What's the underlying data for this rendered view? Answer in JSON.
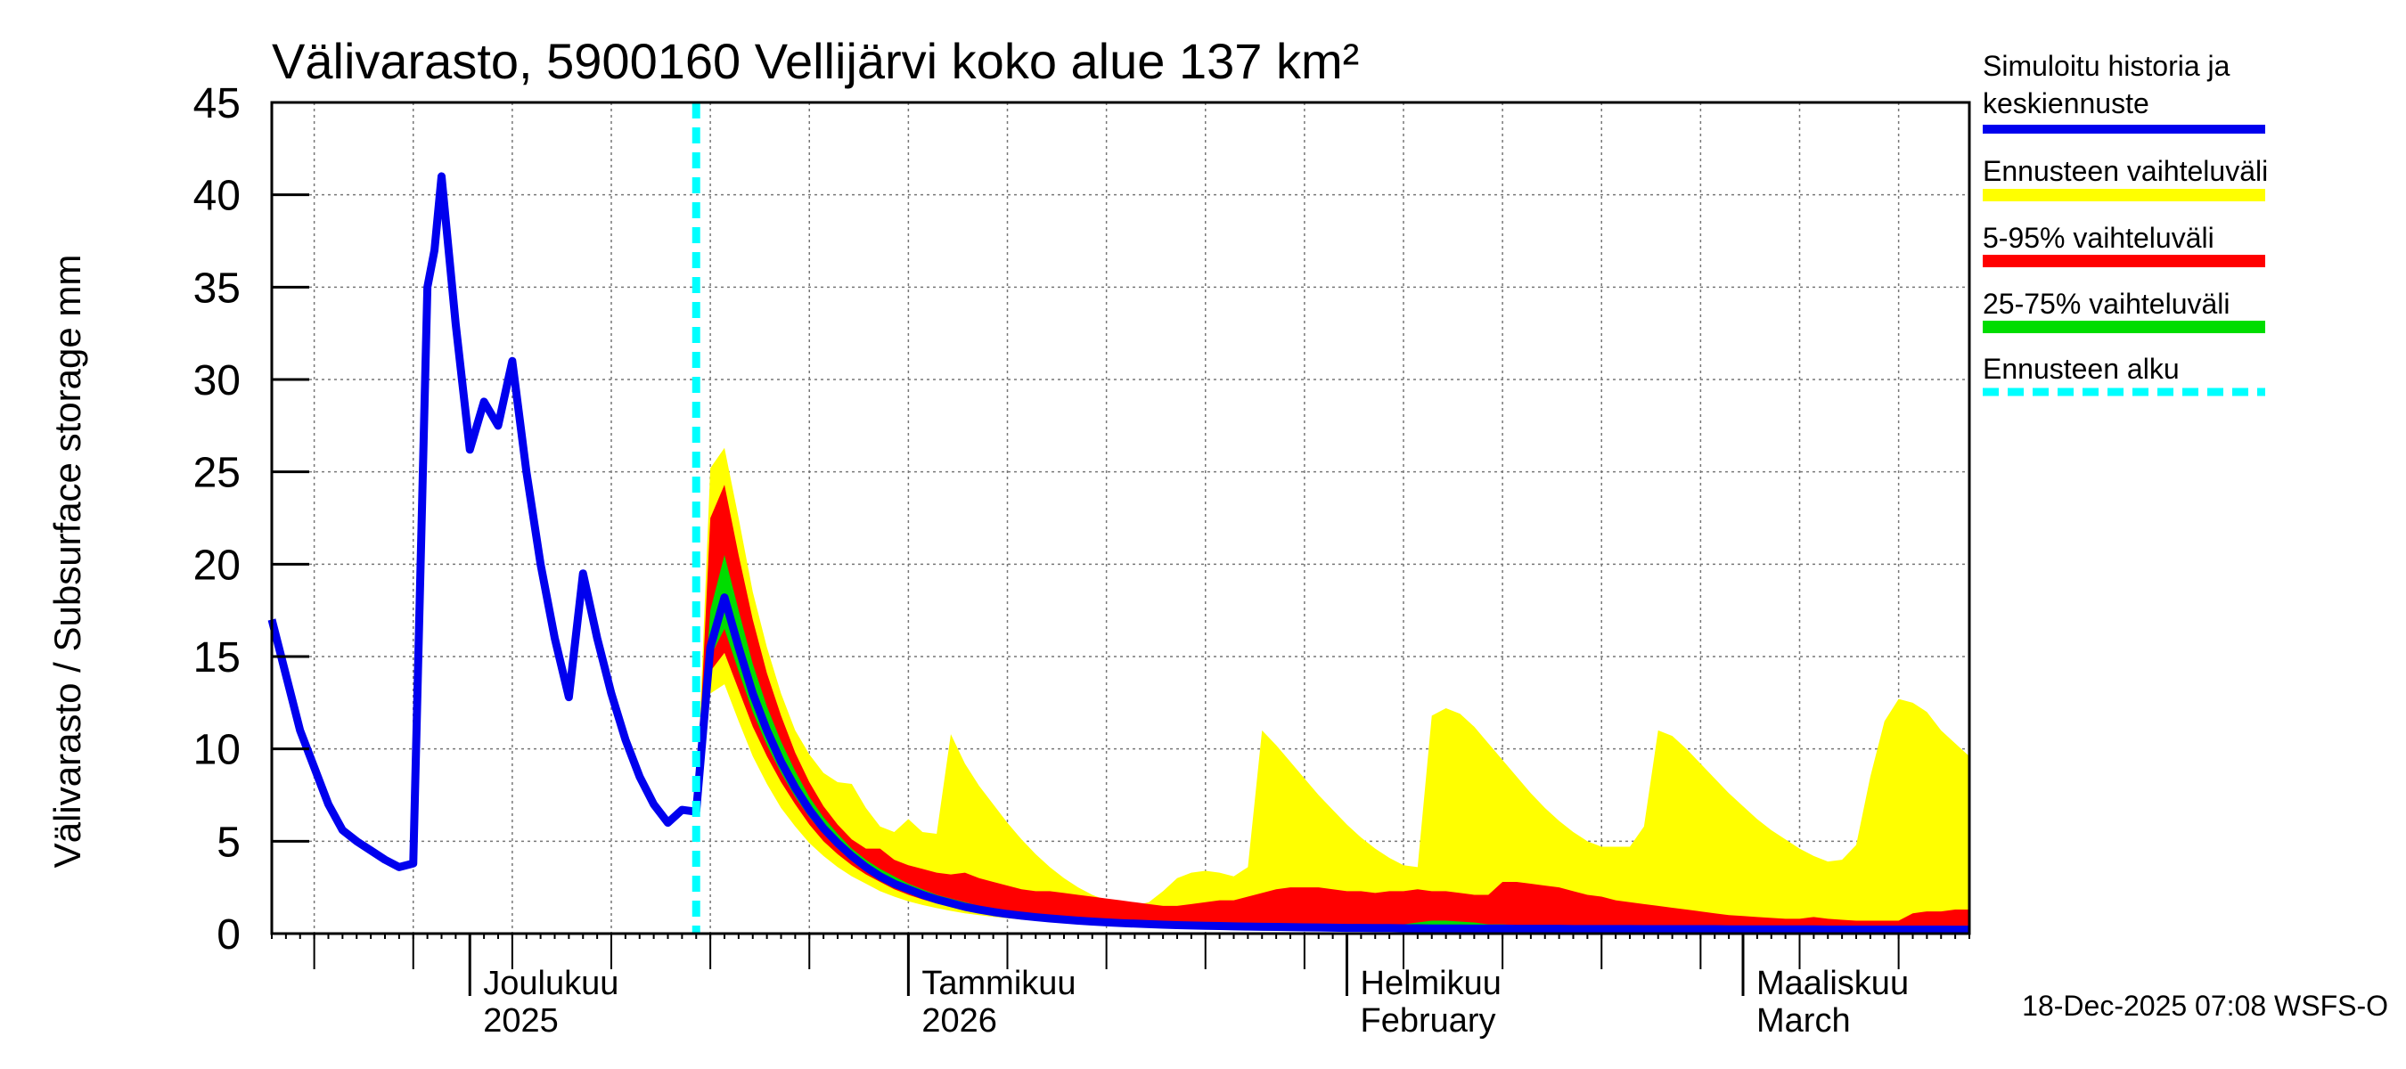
{
  "chart_data": {
    "type": "area",
    "title": "Välivarasto, 5900160 Vellijärvi koko alue 137 km²",
    "ylabel": "Välivarasto / Subsurface storage  mm",
    "ylim": [
      0,
      45
    ],
    "yticks": [
      "0",
      "5",
      "10",
      "15",
      "20",
      "25",
      "30",
      "35",
      "40",
      "45"
    ],
    "xlim_days": [
      0,
      120
    ],
    "forecast_start_day": 30,
    "month_labels": [
      {
        "day": 14,
        "line1": "Joulukuu",
        "line2": "2025"
      },
      {
        "day": 45,
        "line1": "Tammikuu",
        "line2": "2026"
      },
      {
        "day": 76,
        "line1": "Helmikuu",
        "line2": "February"
      },
      {
        "day": 104,
        "line1": "Maaliskuu",
        "line2": "March"
      }
    ],
    "legend": {
      "history_line1": "Simuloitu historia ja",
      "history_line2": "keskiennuste",
      "range": "Ennusteen vaihteluväli",
      "p5_95": "5-95% vaihteluväli",
      "p25_75": "25-75% vaihteluväli",
      "start": "Ennusteen alku"
    },
    "footer": "18-Dec-2025 07:08 WSFS-O",
    "colors": {
      "history": "#0000ee",
      "range": "#ffff00",
      "p5_95": "#ff0000",
      "p25_75": "#00dd00",
      "start": "#00ffff"
    },
    "history": {
      "x": [
        0,
        1,
        2,
        3,
        4,
        5,
        6,
        7,
        8,
        9,
        10,
        11,
        11.5,
        12,
        13,
        14,
        15,
        16,
        17,
        18,
        19,
        20,
        21,
        22,
        23,
        24,
        25,
        26,
        27,
        28,
        29,
        30
      ],
      "y": [
        17,
        14,
        11,
        9,
        7,
        5.6,
        5,
        4.5,
        4,
        3.6,
        3.8,
        35,
        37,
        41,
        33,
        26.2,
        28.8,
        27.5,
        31,
        25,
        20,
        16,
        12.8,
        19.5,
        16,
        13,
        10.5,
        8.5,
        7,
        6,
        6.7,
        6.6
      ]
    },
    "forecast": {
      "x": [
        30,
        31,
        32,
        33,
        34,
        35,
        36,
        37,
        38,
        39,
        40,
        41,
        42,
        43,
        44,
        45,
        46,
        47,
        48,
        49,
        50,
        51,
        52,
        53,
        54,
        55,
        56,
        57,
        58,
        59,
        60,
        61,
        62,
        63,
        64,
        65,
        66,
        67,
        68,
        69,
        70,
        71,
        72,
        73,
        74,
        75,
        76,
        77,
        78,
        79,
        80,
        81,
        82,
        83,
        84,
        85,
        86,
        87,
        88,
        89,
        90,
        91,
        92,
        93,
        94,
        95,
        96,
        97,
        98,
        99,
        100,
        101,
        102,
        103,
        104,
        105,
        106,
        107,
        108,
        109,
        110,
        111,
        112,
        113,
        114,
        115,
        116,
        117,
        118,
        119,
        120
      ],
      "mean": [
        6.6,
        15.5,
        18.2,
        15.5,
        13,
        11,
        9.3,
        7.9,
        6.7,
        5.7,
        4.9,
        4.2,
        3.6,
        3.1,
        2.7,
        2.4,
        2.1,
        1.85,
        1.65,
        1.45,
        1.3,
        1.17,
        1.06,
        0.97,
        0.89,
        0.82,
        0.76,
        0.7,
        0.65,
        0.61,
        0.57,
        0.54,
        0.51,
        0.48,
        0.46,
        0.44,
        0.42,
        0.41,
        0.39,
        0.38,
        0.37,
        0.36,
        0.35,
        0.34,
        0.33,
        0.32,
        0.31,
        0.31,
        0.3,
        0.3,
        0.29,
        0.29,
        0.28,
        0.28,
        0.28,
        0.27,
        0.27,
        0.27,
        0.26,
        0.26,
        0.26,
        0.26,
        0.25,
        0.25,
        0.25,
        0.25,
        0.25,
        0.24,
        0.24,
        0.24,
        0.24,
        0.24,
        0.24,
        0.23,
        0.23,
        0.23,
        0.23,
        0.23,
        0.23,
        0.23,
        0.22,
        0.22,
        0.22,
        0.22,
        0.22,
        0.22,
        0.22,
        0.22,
        0.22,
        0.21,
        0.21
      ],
      "min": [
        6.6,
        13,
        13.5,
        11.5,
        9.6,
        8.1,
        6.8,
        5.8,
        4.9,
        4.2,
        3.6,
        3.1,
        2.7,
        2.3,
        2,
        1.75,
        1.55,
        1.38,
        1.23,
        1.1,
        1,
        0.91,
        0.83,
        0.76,
        0.7,
        0.65,
        0.6,
        0.56,
        0.53,
        0.5,
        0.47,
        0.45,
        0.43,
        0.41,
        0.39,
        0.37,
        0.36,
        0.35,
        0.34,
        0.33,
        0.32,
        0.31,
        0.3,
        0.29,
        0.29,
        0.28,
        0.28,
        0.27,
        0.27,
        0.26,
        0.26,
        0.26,
        0.25,
        0.25,
        0.25,
        0.24,
        0.24,
        0.24,
        0.24,
        0.23,
        0.23,
        0.23,
        0.23,
        0.22,
        0.22,
        0.22,
        0.22,
        0.22,
        0.21,
        0.21,
        0.21,
        0.21,
        0.21,
        0.21,
        0.2,
        0.2,
        0.2,
        0.2,
        0.2,
        0.2,
        0.2,
        0.2,
        0.19,
        0.19,
        0.19,
        0.19,
        0.19,
        0.19,
        0.19,
        0.19,
        0.19
      ],
      "max": [
        6.6,
        25.2,
        26.3,
        22.5,
        18.5,
        15.5,
        13,
        11,
        9.7,
        8.7,
        8.2,
        8.1,
        6.8,
        5.8,
        5.5,
        6.2,
        5.5,
        5.4,
        10.8,
        9.2,
        8,
        7,
        6,
        5.1,
        4.3,
        3.6,
        3,
        2.5,
        2.1,
        1.8,
        1.6,
        1.5,
        1.7,
        2.3,
        3,
        3.3,
        3.4,
        3.3,
        3.1,
        3.6,
        11,
        10.2,
        9.3,
        8.4,
        7.5,
        6.7,
        5.9,
        5.2,
        4.6,
        4.1,
        3.7,
        3.6,
        11.8,
        12.2,
        11.9,
        11.2,
        10.3,
        9.4,
        8.5,
        7.6,
        6.8,
        6.1,
        5.5,
        5,
        4.7,
        4.7,
        4.7,
        5.8,
        11,
        10.7,
        10,
        9.2,
        8.4,
        7.6,
        6.9,
        6.2,
        5.6,
        5.1,
        4.6,
        4.2,
        3.9,
        4,
        4.8,
        8.5,
        11.5,
        12.7,
        12.5,
        12,
        11,
        10.3,
        9.6
      ],
      "p5": [
        6.6,
        14.2,
        15.2,
        13.2,
        11.2,
        9.6,
        8.2,
        7,
        5.9,
        5,
        4.3,
        3.7,
        3.2,
        2.8,
        2.4,
        2.1,
        1.85,
        1.63,
        1.45,
        1.3,
        1.17,
        1.05,
        0.95,
        0.87,
        0.8,
        0.74,
        0.69,
        0.64,
        0.6,
        0.56,
        0.53,
        0.5,
        0.47,
        0.45,
        0.43,
        0.41,
        0.39,
        0.38,
        0.37,
        0.36,
        0.35,
        0.34,
        0.33,
        0.32,
        0.31,
        0.3,
        0.3,
        0.29,
        0.29,
        0.28,
        0.28,
        0.27,
        0.27,
        0.27,
        0.26,
        0.26,
        0.26,
        0.25,
        0.25,
        0.25,
        0.25,
        0.24,
        0.24,
        0.24,
        0.24,
        0.23,
        0.23,
        0.23,
        0.23,
        0.23,
        0.23,
        0.22,
        0.22,
        0.22,
        0.22,
        0.22,
        0.22,
        0.22,
        0.21,
        0.21,
        0.21,
        0.21,
        0.21,
        0.21,
        0.21,
        0.21,
        0.21,
        0.2,
        0.2,
        0.2,
        0.2
      ],
      "p95": [
        6.6,
        22.5,
        24.3,
        20.5,
        17,
        14.1,
        11.8,
        9.8,
        8.2,
        6.9,
        5.9,
        5.1,
        4.6,
        4.6,
        4,
        3.7,
        3.5,
        3.3,
        3.2,
        3.3,
        3,
        2.8,
        2.6,
        2.4,
        2.3,
        2.3,
        2.2,
        2.1,
        2,
        1.9,
        1.8,
        1.7,
        1.6,
        1.5,
        1.5,
        1.6,
        1.7,
        1.8,
        1.8,
        2,
        2.2,
        2.4,
        2.5,
        2.5,
        2.5,
        2.4,
        2.3,
        2.3,
        2.2,
        2.3,
        2.3,
        2.4,
        2.3,
        2.3,
        2.2,
        2.1,
        2.1,
        2.8,
        2.8,
        2.7,
        2.6,
        2.5,
        2.3,
        2.1,
        2,
        1.8,
        1.7,
        1.6,
        1.5,
        1.4,
        1.3,
        1.2,
        1.1,
        1,
        0.95,
        0.9,
        0.85,
        0.8,
        0.8,
        0.9,
        0.8,
        0.75,
        0.7,
        0.7,
        0.7,
        0.7,
        1.1,
        1.2,
        1.2,
        1.3,
        1.3
      ],
      "p25": [
        6.6,
        15,
        16.5,
        14.2,
        12,
        10.2,
        8.7,
        7.4,
        6.3,
        5.4,
        4.6,
        4,
        3.4,
        3,
        2.6,
        2.3,
        2,
        1.76,
        1.56,
        1.4,
        1.25,
        1.13,
        1.02,
        0.93,
        0.86,
        0.79,
        0.73,
        0.68,
        0.63,
        0.59,
        0.56,
        0.52,
        0.49,
        0.47,
        0.45,
        0.43,
        0.41,
        0.4,
        0.38,
        0.37,
        0.36,
        0.35,
        0.34,
        0.33,
        0.32,
        0.31,
        0.31,
        0.3,
        0.3,
        0.29,
        0.29,
        0.28,
        0.28,
        0.28,
        0.27,
        0.27,
        0.27,
        0.26,
        0.26,
        0.26,
        0.26,
        0.25,
        0.25,
        0.25,
        0.25,
        0.24,
        0.24,
        0.24,
        0.24,
        0.24,
        0.24,
        0.23,
        0.23,
        0.23,
        0.23,
        0.23,
        0.23,
        0.22,
        0.22,
        0.22,
        0.22,
        0.22,
        0.22,
        0.22,
        0.22,
        0.21,
        0.21,
        0.21,
        0.21,
        0.21,
        0.21
      ],
      "p75": [
        6.6,
        17.5,
        20.5,
        17.5,
        14.6,
        12.3,
        10.4,
        8.8,
        7.4,
        6.3,
        5.4,
        4.6,
        4,
        3.5,
        3.1,
        2.7,
        2.4,
        2.1,
        1.9,
        1.7,
        1.5,
        1.35,
        1.22,
        1.1,
        1,
        0.92,
        0.85,
        0.78,
        0.72,
        0.68,
        0.64,
        0.6,
        0.57,
        0.54,
        0.52,
        0.5,
        0.5,
        0.49,
        0.48,
        0.47,
        0.46,
        0.46,
        0.45,
        0.45,
        0.44,
        0.44,
        0.43,
        0.43,
        0.42,
        0.42,
        0.5,
        0.6,
        0.7,
        0.7,
        0.65,
        0.6,
        0.5,
        0.5,
        0.45,
        0.45,
        0.42,
        0.4,
        0.38,
        0.37,
        0.36,
        0.35,
        0.34,
        0.33,
        0.33,
        0.32,
        0.32,
        0.31,
        0.31,
        0.3,
        0.3,
        0.29,
        0.29,
        0.28,
        0.28,
        0.28,
        0.27,
        0.27,
        0.27,
        0.26,
        0.26,
        0.26,
        0.26,
        0.26,
        0.25,
        0.25,
        0.25
      ]
    }
  }
}
